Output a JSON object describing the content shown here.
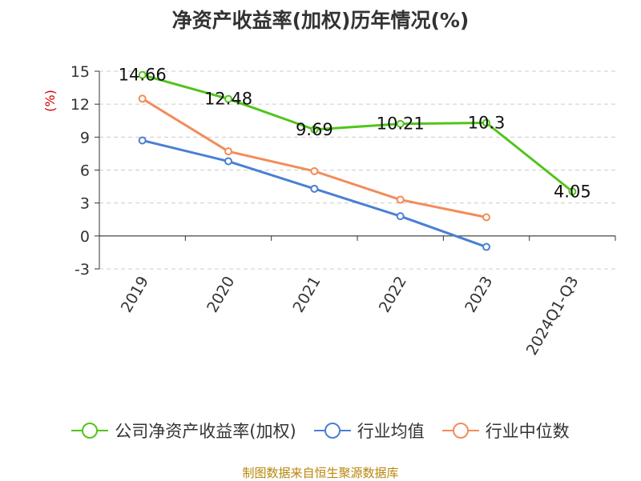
{
  "chart_data": {
    "type": "line",
    "title": "净资产收益率(加权)历年情况(%)",
    "ylabel": "(%)",
    "xlabel": "",
    "categories": [
      "2019",
      "2020",
      "2021",
      "2022",
      "2023",
      "2024Q1-Q3"
    ],
    "ylim": [
      -3,
      15
    ],
    "yticks": [
      15,
      12,
      9,
      6,
      3,
      0,
      -3
    ],
    "grid": true,
    "legend_position": "bottom",
    "series": [
      {
        "name": "公司净资产收益率(加权)",
        "color": "#52c41a",
        "values": [
          14.66,
          12.48,
          9.69,
          10.21,
          10.3,
          4.05
        ],
        "labels": [
          "14.66",
          "12.48",
          "9.69",
          "10.21",
          "10.3",
          "4.05"
        ]
      },
      {
        "name": "行业均值",
        "color": "#4a7fd4",
        "values": [
          8.7,
          6.8,
          4.3,
          1.8,
          -1.0,
          null
        ]
      },
      {
        "name": "行业中位数",
        "color": "#f28c5a",
        "values": [
          12.5,
          7.7,
          5.9,
          3.3,
          1.7,
          null
        ]
      }
    ]
  },
  "source": "制图数据来自恒生聚源数据库"
}
